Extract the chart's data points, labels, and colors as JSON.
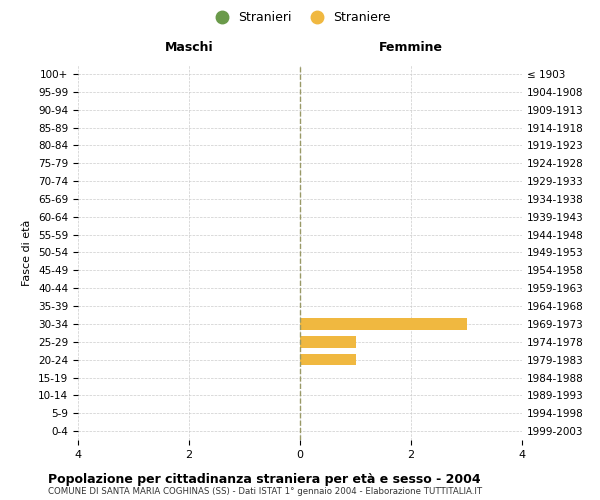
{
  "age_groups": [
    "100+",
    "95-99",
    "90-94",
    "85-89",
    "80-84",
    "75-79",
    "70-74",
    "65-69",
    "60-64",
    "55-59",
    "50-54",
    "45-49",
    "40-44",
    "35-39",
    "30-34",
    "25-29",
    "20-24",
    "15-19",
    "10-14",
    "5-9",
    "0-4"
  ],
  "birth_years": [
    "≤ 1903",
    "1904-1908",
    "1909-1913",
    "1914-1918",
    "1919-1923",
    "1924-1928",
    "1929-1933",
    "1934-1938",
    "1939-1943",
    "1944-1948",
    "1949-1953",
    "1954-1958",
    "1959-1963",
    "1964-1968",
    "1969-1973",
    "1974-1978",
    "1979-1983",
    "1984-1988",
    "1989-1993",
    "1994-1998",
    "1999-2003"
  ],
  "males_stranieri": [
    0,
    0,
    0,
    0,
    0,
    0,
    0,
    0,
    0,
    0,
    0,
    0,
    0,
    0,
    0,
    0,
    0,
    0,
    0,
    0,
    0
  ],
  "females_straniere": [
    0,
    0,
    0,
    0,
    0,
    0,
    0,
    0,
    0,
    0,
    0,
    0,
    0,
    0,
    3,
    1,
    1,
    0,
    0,
    0,
    0
  ],
  "color_males": "#6a9a4a",
  "color_females": "#f0b840",
  "xlim": 4,
  "title": "Popolazione per cittadinanza straniera per età e sesso - 2004",
  "subtitle": "COMUNE DI SANTA MARIA COGHINAS (SS) - Dati ISTAT 1° gennaio 2004 - Elaborazione TUTTITALIA.IT",
  "ylabel_left": "Fasce di età",
  "legend_stranieri": "Stranieri",
  "legend_straniere": "Straniere",
  "maschi_label": "Maschi",
  "femmine_label": "Femmine",
  "bg_color": "#ffffff",
  "grid_color": "#cccccc",
  "bar_height": 0.65
}
